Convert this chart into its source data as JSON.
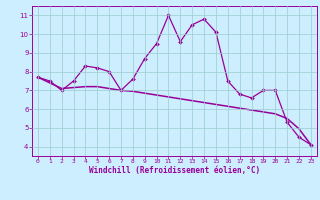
{
  "xlabel": "Windchill (Refroidissement éolien,°C)",
  "x": [
    0,
    1,
    2,
    3,
    4,
    5,
    6,
    7,
    8,
    9,
    10,
    11,
    12,
    13,
    14,
    15,
    16,
    17,
    18,
    19,
    20,
    21,
    22,
    23
  ],
  "y_line1": [
    7.7,
    7.5,
    7.0,
    7.5,
    8.3,
    8.2,
    8.0,
    7.0,
    7.6,
    8.7,
    9.5,
    11.0,
    9.6,
    10.5,
    10.8,
    10.1,
    7.5,
    6.8,
    6.6,
    7.0,
    7.0,
    5.3,
    4.5,
    4.1
  ],
  "y_line2": [
    7.7,
    7.4,
    7.1,
    7.15,
    7.2,
    7.2,
    7.1,
    7.0,
    6.95,
    6.85,
    6.75,
    6.65,
    6.55,
    6.45,
    6.35,
    6.25,
    6.15,
    6.05,
    5.95,
    5.85,
    5.75,
    5.5,
    4.95,
    4.1
  ],
  "line_color": "#990099",
  "bg_color": "#cceeff",
  "grid_color": "#99cccc",
  "ylim": [
    3.5,
    11.5
  ],
  "xlim": [
    -0.5,
    23.5
  ],
  "yticks": [
    4,
    5,
    6,
    7,
    8,
    9,
    10,
    11
  ],
  "xticks": [
    0,
    1,
    2,
    3,
    4,
    5,
    6,
    7,
    8,
    9,
    10,
    11,
    12,
    13,
    14,
    15,
    16,
    17,
    18,
    19,
    20,
    21,
    22,
    23
  ],
  "tick_fontsize": 4.5,
  "xlabel_fontsize": 5.5,
  "marker_size": 2.0,
  "linewidth1": 0.9,
  "linewidth2": 1.1
}
